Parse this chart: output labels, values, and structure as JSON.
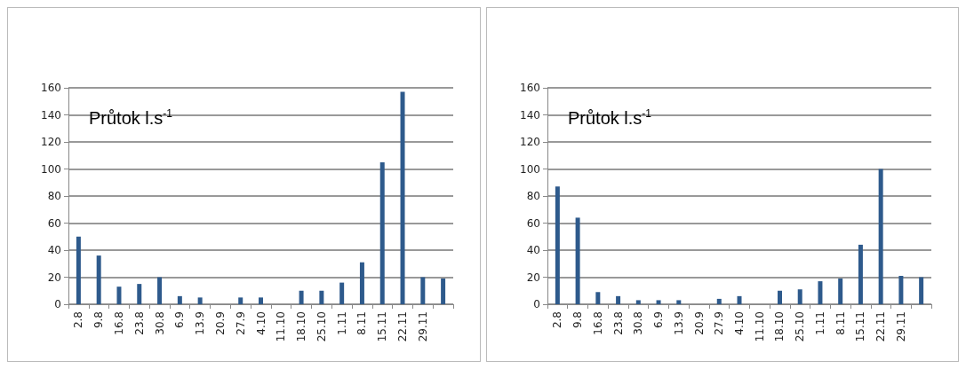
{
  "chart_data": [
    {
      "type": "bar",
      "title": "Průtok l.s$^{-1}$",
      "categories": [
        "2.8",
        "9.8",
        "16.8",
        "23.8",
        "30.8",
        "6.9",
        "13.9",
        "20.9",
        "27.9",
        "4.10",
        "11.10",
        "18.10",
        "25.10",
        "1.11",
        "8.11",
        "15.11",
        "22.11",
        "29.11",
        null
      ],
      "series": [
        {
          "color": "#2e5a8c",
          "values": [
            50,
            36,
            13,
            15,
            20,
            6,
            5,
            null,
            5,
            5,
            null,
            10,
            10,
            16,
            31,
            105,
            157,
            20,
            19
          ]
        }
      ],
      "ylim": [
        0,
        160
      ],
      "yticks": [
        0,
        20,
        40,
        60,
        80,
        100,
        120,
        140,
        160
      ],
      "grid": "y"
    },
    {
      "type": "bar",
      "title": "Průtok l.s$^{-1}$",
      "categories": [
        "2.8",
        "9.8",
        "16.8",
        "23.8",
        "30.8",
        "6.9",
        "13.9",
        "20.9",
        "27.9",
        "4.10",
        "11.10",
        "18.10",
        "25.10",
        "1.11",
        "8.11",
        "15.11",
        "22.11",
        "29.11",
        null
      ],
      "series": [
        {
          "color": "#2e5a8c",
          "values": [
            87,
            64,
            9,
            6,
            3,
            3,
            3,
            null,
            4,
            6,
            null,
            10,
            11,
            17,
            19,
            44,
            100,
            21,
            20
          ]
        }
      ],
      "ylim": [
        0,
        160
      ],
      "yticks": [
        0,
        20,
        40,
        60,
        80,
        100,
        120,
        140,
        160
      ],
      "grid": "y"
    }
  ]
}
